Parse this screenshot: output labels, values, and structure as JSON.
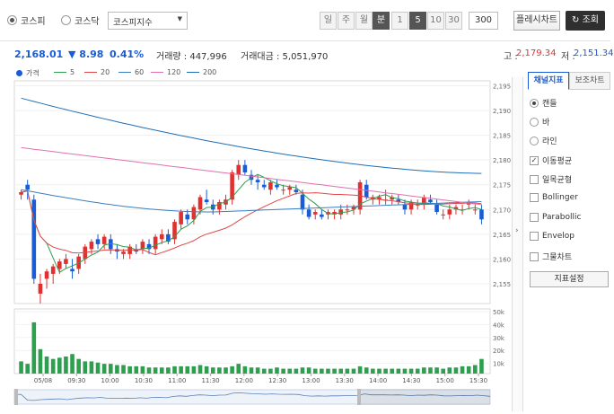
{
  "toolbar": {
    "markets": [
      {
        "label": "코스피",
        "selected": true
      },
      {
        "label": "코스닥",
        "selected": false
      }
    ],
    "index_select": "코스피지수",
    "periods": [
      {
        "label": "일",
        "active": false
      },
      {
        "label": "주",
        "active": false
      },
      {
        "label": "월",
        "active": false
      },
      {
        "label": "분",
        "active": true
      }
    ],
    "intervals": [
      {
        "label": "1",
        "active": false
      },
      {
        "label": "5",
        "active": true
      },
      {
        "label": "10",
        "active": false
      },
      {
        "label": "30",
        "active": false
      }
    ],
    "count_value": "300",
    "reset_label": "플레시차트",
    "search_label": "조회",
    "search_icon": "refresh-icon"
  },
  "quote": {
    "price": "2,168.01",
    "change": "▼ 8.98",
    "change_pct": "0.41%",
    "volume_label": "거래량 : 447,996",
    "amount_label": "거래대금 : 5,051,970",
    "high_label": "고 :",
    "high_value": "2,179.34",
    "low_label": "저 :",
    "low_value": "2,151.34"
  },
  "legend": [
    {
      "name": "가격",
      "color": "#1a5bd6",
      "type": "dot"
    },
    {
      "name": "5",
      "color": "#2e9e4f",
      "type": "line"
    },
    {
      "name": "20",
      "color": "#e04848",
      "type": "line"
    },
    {
      "name": "60",
      "color": "#3a7fc0",
      "type": "line"
    },
    {
      "name": "120",
      "color": "#e070b0",
      "type": "line"
    },
    {
      "name": "200",
      "color": "#1f6fb5",
      "type": "line"
    }
  ],
  "panel": {
    "tabs": [
      {
        "label": "채널지표",
        "active": true
      },
      {
        "label": "보조차트",
        "active": false
      }
    ],
    "chart_types": [
      {
        "label": "캔들",
        "selected": true
      },
      {
        "label": "바",
        "selected": false
      },
      {
        "label": "라인",
        "selected": false
      }
    ],
    "overlays": [
      {
        "label": "이동평균",
        "checked": true
      },
      {
        "label": "일목균형",
        "checked": false
      },
      {
        "label": "Bollinger",
        "checked": false
      },
      {
        "label": "Parabollic",
        "checked": false
      },
      {
        "label": "Envelop",
        "checked": false
      },
      {
        "label": "그물차트",
        "checked": false
      }
    ],
    "settings_label": "지표설정"
  },
  "chart_data": {
    "type": "candlestick",
    "price_axis": [
      "2,195",
      "2,190",
      "2,185",
      "2,180",
      "2,175",
      "2,170",
      "2,165",
      "2,160",
      "2,155"
    ],
    "volume_axis": [
      "50k",
      "40k",
      "30k",
      "20k",
      "10k"
    ],
    "ylim": [
      2151,
      2196
    ],
    "volume_max": 50,
    "time_labels": [
      "05/08",
      "09:30",
      "10:00",
      "10:30",
      "11:00",
      "11:30",
      "12:00",
      "12:30",
      "13:00",
      "13:30",
      "14:00",
      "14:30",
      "15:00",
      "15:30"
    ],
    "candles": [
      [
        2173,
        2174,
        2172,
        2173.5
      ],
      [
        2175,
        2176,
        2172,
        2174
      ],
      [
        2172,
        2173,
        2155,
        2156
      ],
      [
        2153,
        2157,
        2151,
        2155
      ],
      [
        2156,
        2158,
        2154,
        2157.5
      ],
      [
        2157,
        2159,
        2155,
        2158.5
      ],
      [
        2158,
        2160,
        2157,
        2159.5
      ],
      [
        2159,
        2161,
        2158,
        2160
      ],
      [
        2158,
        2160,
        2156,
        2157.5
      ],
      [
        2158,
        2161,
        2157,
        2160.5
      ],
      [
        2160,
        2163,
        2159,
        2162.5
      ],
      [
        2162,
        2164,
        2161,
        2163.5
      ],
      [
        2164,
        2165,
        2162,
        2163
      ],
      [
        2163,
        2165,
        2162,
        2164.5
      ],
      [
        2164,
        2165,
        2161,
        2162
      ],
      [
        2162,
        2163,
        2160,
        2161.5
      ],
      [
        2161,
        2162,
        2160,
        2161.5
      ],
      [
        2161,
        2163,
        2160,
        2162.5
      ],
      [
        2162,
        2163,
        2161,
        2161.5
      ],
      [
        2162,
        2164,
        2161,
        2163.5
      ],
      [
        2163,
        2164,
        2161,
        2162
      ],
      [
        2162,
        2165,
        2161,
        2164.5
      ],
      [
        2164,
        2166,
        2163,
        2165
      ],
      [
        2165,
        2166,
        2163,
        2163.5
      ],
      [
        2164,
        2168,
        2163,
        2167.5
      ],
      [
        2167,
        2170,
        2166,
        2169.5
      ],
      [
        2169,
        2170,
        2167,
        2168
      ],
      [
        2168,
        2171,
        2167,
        2170.5
      ],
      [
        2170,
        2173,
        2169,
        2172.5
      ],
      [
        2172,
        2174,
        2171,
        2171.5
      ],
      [
        2171,
        2172,
        2169,
        2170
      ],
      [
        2170,
        2172,
        2169,
        2171.5
      ],
      [
        2171,
        2173,
        2170,
        2172
      ],
      [
        2172,
        2178,
        2171,
        2177.5
      ],
      [
        2177,
        2180,
        2176,
        2179
      ],
      [
        2179,
        2180,
        2177,
        2177.5
      ],
      [
        2177,
        2178,
        2175,
        2176
      ],
      [
        2176,
        2177,
        2174,
        2175.5
      ],
      [
        2175,
        2176,
        2174,
        2174.5
      ],
      [
        2174,
        2176,
        2173,
        2175.5
      ],
      [
        2175,
        2176,
        2174,
        2174.5
      ],
      [
        2174,
        2175,
        2173,
        2174
      ],
      [
        2174,
        2175,
        2173,
        2174.5
      ],
      [
        2174,
        2175,
        2173,
        2173.5
      ],
      [
        2173,
        2174,
        2169,
        2170
      ],
      [
        2170,
        2171,
        2168,
        2168.5
      ],
      [
        2169,
        2170,
        2168,
        2169.5
      ],
      [
        2169,
        2170,
        2168,
        2168.5
      ],
      [
        2169,
        2170,
        2168,
        2169.5
      ],
      [
        2169,
        2170,
        2168,
        2169.5
      ],
      [
        2169,
        2171,
        2168,
        2170
      ],
      [
        2170,
        2171,
        2169,
        2170
      ],
      [
        2170,
        2171,
        2169,
        2170.5
      ],
      [
        2170,
        2176,
        2169,
        2175.5
      ],
      [
        2175,
        2176,
        2172,
        2172.5
      ],
      [
        2172,
        2173,
        2171,
        2172.5
      ],
      [
        2172,
        2173,
        2171,
        2172.5
      ],
      [
        2172,
        2174,
        2171,
        2172
      ],
      [
        2172,
        2173,
        2171,
        2172.5
      ],
      [
        2172,
        2173,
        2171,
        2171.5
      ],
      [
        2171,
        2172,
        2169,
        2170
      ],
      [
        2170,
        2172,
        2169,
        2171.5
      ],
      [
        2171,
        2172,
        2170,
        2171
      ],
      [
        2171,
        2173,
        2170,
        2172.5
      ],
      [
        2172,
        2173,
        2171,
        2171.5
      ],
      [
        2171,
        2172,
        2169,
        2169.5
      ],
      [
        2169,
        2170,
        2168,
        2169
      ],
      [
        2169,
        2171,
        2168,
        2170
      ],
      [
        2170,
        2171,
        2169,
        2170.5
      ],
      [
        2170,
        2171,
        2169,
        2170
      ],
      [
        2171,
        2172,
        2170,
        2171.5
      ],
      [
        2170,
        2171,
        2169,
        2170
      ],
      [
        2170,
        2171,
        2167,
        2168
      ]
    ],
    "volume": [
      10,
      8,
      42,
      20,
      14,
      12,
      13,
      14,
      16,
      12,
      10,
      10,
      9,
      8,
      8,
      7,
      7,
      6,
      6,
      6,
      5,
      5,
      5,
      5,
      6,
      6,
      6,
      6,
      7,
      6,
      5,
      5,
      5,
      6,
      8,
      6,
      5,
      5,
      4,
      4,
      5,
      4,
      4,
      4,
      5,
      5,
      4,
      4,
      4,
      4,
      4,
      4,
      4,
      6,
      5,
      4,
      4,
      4,
      4,
      4,
      4,
      4,
      4,
      5,
      5,
      5,
      4,
      5,
      5,
      6,
      6,
      7,
      12
    ]
  }
}
